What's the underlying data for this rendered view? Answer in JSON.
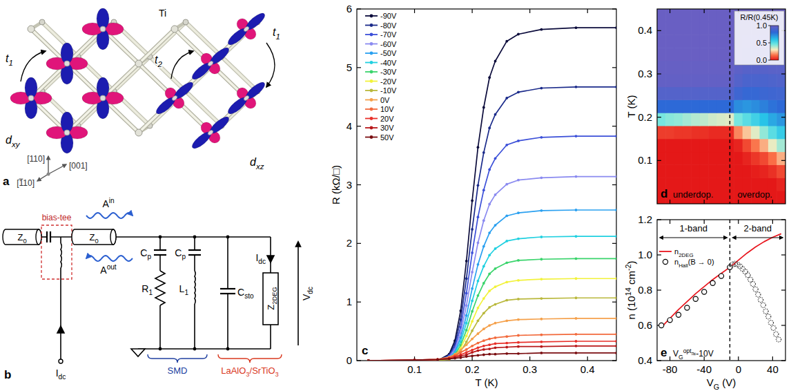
{
  "chart_data": [
    {
      "type": "line",
      "panel_label": "c",
      "x_label": "T (K)",
      "y_label": "R (kΩ/□)",
      "xlim": [
        0,
        0.45
      ],
      "ylim": [
        0,
        6
      ],
      "xticks": [
        0.1,
        0.2,
        0.3,
        0.4
      ],
      "yticks": [
        0,
        1,
        2,
        3,
        4,
        5,
        6
      ],
      "legend": "upper left",
      "marker": "circle",
      "x": [
        0.02,
        0.1,
        0.14,
        0.16,
        0.17,
        0.18,
        0.19,
        0.2,
        0.21,
        0.22,
        0.23,
        0.24,
        0.26,
        0.28,
        0.32,
        0.38,
        0.45
      ],
      "series": [
        {
          "name": "-90V",
          "color": "#0b0b3b",
          "values": [
            0,
            0,
            0,
            0.11,
            0.34,
            0.85,
            1.7,
            2.73,
            3.64,
            4.32,
            4.83,
            5.11,
            5.45,
            5.57,
            5.65,
            5.68,
            5.68
          ]
        },
        {
          "name": "-80V",
          "color": "#1a2a8a",
          "values": [
            0,
            0,
            0,
            0.09,
            0.28,
            0.7,
            1.4,
            2.24,
            2.99,
            3.55,
            3.97,
            4.2,
            4.48,
            4.58,
            4.65,
            4.67,
            4.67
          ]
        },
        {
          "name": "-70V",
          "color": "#3b4fd8",
          "values": [
            0,
            0,
            0,
            0.08,
            0.23,
            0.57,
            1.15,
            1.84,
            2.45,
            2.91,
            3.26,
            3.45,
            3.68,
            3.75,
            3.81,
            3.83,
            3.83
          ]
        },
        {
          "name": "-60V",
          "color": "#8a8af0",
          "values": [
            0,
            0,
            0,
            0.06,
            0.19,
            0.47,
            0.94,
            1.51,
            2.01,
            2.39,
            2.67,
            2.83,
            3.01,
            3.08,
            3.12,
            3.14,
            3.14
          ]
        },
        {
          "name": "-50V",
          "color": "#2aa0f0",
          "values": [
            0,
            0,
            0,
            0.05,
            0.15,
            0.39,
            0.77,
            1.23,
            1.64,
            1.95,
            2.18,
            2.31,
            2.47,
            2.52,
            2.56,
            2.57,
            2.57
          ]
        },
        {
          "name": "-40V",
          "color": "#20d0e0",
          "values": [
            0,
            0,
            0,
            0.04,
            0.13,
            0.32,
            0.64,
            1.02,
            1.36,
            1.61,
            1.8,
            1.91,
            2.04,
            2.08,
            2.11,
            2.12,
            2.12
          ]
        },
        {
          "name": "-30V",
          "color": "#3ad46c",
          "values": [
            0,
            0,
            0,
            0.03,
            0.1,
            0.26,
            0.52,
            0.84,
            1.11,
            1.32,
            1.48,
            1.57,
            1.67,
            1.71,
            1.73,
            1.74,
            1.74
          ]
        },
        {
          "name": "-20V",
          "color": "#f2f23a",
          "values": [
            0,
            0,
            0,
            0.03,
            0.08,
            0.21,
            0.42,
            0.67,
            0.9,
            1.06,
            1.19,
            1.26,
            1.34,
            1.37,
            1.39,
            1.4,
            1.4
          ]
        },
        {
          "name": "-10V",
          "color": "#b9b83c",
          "values": [
            0,
            0,
            0,
            0.02,
            0.06,
            0.16,
            0.32,
            0.51,
            0.68,
            0.81,
            0.91,
            0.96,
            1.03,
            1.05,
            1.06,
            1.07,
            1.07
          ]
        },
        {
          "name": "0V",
          "color": "#f5a04a",
          "values": [
            0,
            0,
            0.02,
            0.06,
            0.11,
            0.18,
            0.27,
            0.37,
            0.46,
            0.54,
            0.6,
            0.64,
            0.68,
            0.7,
            0.71,
            0.72,
            0.72
          ]
        },
        {
          "name": "10V",
          "color": "#f26a3c",
          "values": [
            0,
            0.01,
            0.02,
            0.05,
            0.09,
            0.14,
            0.19,
            0.25,
            0.3,
            0.34,
            0.37,
            0.39,
            0.41,
            0.43,
            0.44,
            0.45,
            0.45
          ]
        },
        {
          "name": "20V",
          "color": "#e8302a",
          "values": [
            0,
            0.01,
            0.02,
            0.04,
            0.07,
            0.1,
            0.14,
            0.18,
            0.22,
            0.25,
            0.27,
            0.29,
            0.3,
            0.31,
            0.32,
            0.33,
            0.33
          ]
        },
        {
          "name": "30V",
          "color": "#b8181a",
          "values": [
            0,
            0.01,
            0.02,
            0.03,
            0.05,
            0.08,
            0.1,
            0.14,
            0.17,
            0.19,
            0.2,
            0.22,
            0.23,
            0.24,
            0.24,
            0.25,
            0.25
          ]
        },
        {
          "name": "50V",
          "color": "#7a0d10",
          "values": [
            0,
            0.01,
            0.02,
            0.03,
            0.04,
            0.05,
            0.07,
            0.08,
            0.09,
            0.1,
            0.11,
            0.11,
            0.12,
            0.12,
            0.13,
            0.13,
            0.13
          ]
        }
      ]
    },
    {
      "type": "heatmap",
      "panel_label": "d",
      "y_label": "T (K)",
      "xlim": [
        -95,
        55
      ],
      "ylim": [
        0,
        0.45
      ],
      "xticks": [
        -80,
        -40,
        0,
        40
      ],
      "yticks": [
        0.1,
        0.2,
        0.3,
        0.4
      ],
      "tick_labels": "y",
      "x": [
        -90,
        -80,
        -70,
        -60,
        -50,
        -40,
        -30,
        -20,
        -10,
        0,
        10,
        20,
        30,
        40,
        50
      ],
      "y": [
        0.015,
        0.045,
        0.075,
        0.105,
        0.135,
        0.165,
        0.195,
        0.225,
        0.255,
        0.285,
        0.315,
        0.345,
        0.375,
        0.405,
        0.435
      ],
      "cells": [
        [
          0,
          0,
          0,
          0,
          0,
          0,
          0,
          0,
          0,
          0,
          0,
          0,
          0,
          0,
          0
        ],
        [
          0,
          0,
          0,
          0,
          0,
          0,
          0,
          0,
          0,
          0,
          0,
          0,
          0,
          0,
          0.02
        ],
        [
          0,
          0,
          0,
          0,
          0,
          0,
          0,
          0,
          0,
          0,
          0,
          0.01,
          0.02,
          0.04,
          0.08
        ],
        [
          0,
          0,
          0,
          0,
          0,
          0,
          0,
          0,
          0,
          0,
          0.02,
          0.05,
          0.08,
          0.14,
          0.22
        ],
        [
          0,
          0,
          0,
          0,
          0,
          0,
          0,
          0,
          0,
          0.02,
          0.08,
          0.15,
          0.22,
          0.32,
          0.4
        ],
        [
          0.06,
          0.06,
          0.05,
          0.05,
          0.04,
          0.04,
          0.03,
          0.03,
          0.03,
          0.17,
          0.25,
          0.33,
          0.42,
          0.5,
          0.57
        ],
        [
          0.45,
          0.43,
          0.42,
          0.4,
          0.38,
          0.37,
          0.35,
          0.34,
          0.33,
          0.45,
          0.5,
          0.55,
          0.6,
          0.66,
          0.7
        ],
        [
          0.8,
          0.8,
          0.8,
          0.8,
          0.8,
          0.8,
          0.8,
          0.8,
          0.8,
          0.72,
          0.7,
          0.72,
          0.75,
          0.78,
          0.8
        ],
        [
          0.93,
          0.93,
          0.93,
          0.93,
          0.93,
          0.93,
          0.93,
          0.93,
          0.93,
          0.86,
          0.83,
          0.83,
          0.85,
          0.86,
          0.87
        ],
        [
          0.98,
          0.98,
          0.98,
          0.98,
          0.98,
          0.98,
          0.98,
          0.98,
          0.98,
          0.93,
          0.9,
          0.9,
          0.9,
          0.91,
          0.92
        ],
        [
          0.99,
          0.99,
          0.99,
          0.99,
          0.99,
          0.99,
          0.99,
          0.99,
          0.99,
          0.96,
          0.94,
          0.94,
          0.94,
          0.95,
          0.95
        ],
        [
          1,
          1,
          1,
          1,
          1,
          1,
          1,
          1,
          1,
          0.98,
          0.97,
          0.96,
          0.96,
          0.97,
          0.97
        ],
        [
          1,
          1,
          1,
          1,
          1,
          1,
          1,
          1,
          1,
          0.99,
          0.98,
          0.98,
          0.98,
          0.98,
          0.98
        ],
        [
          1,
          1,
          1,
          1,
          1,
          1,
          1,
          1,
          1,
          1,
          0.99,
          0.99,
          0.99,
          0.99,
          0.99
        ],
        [
          1,
          1,
          1,
          1,
          1,
          1,
          1,
          1,
          1,
          1,
          1,
          1,
          1,
          1,
          1
        ]
      ],
      "colorbar": {
        "label": "R/R(0.45K)",
        "range": [
          0,
          1
        ],
        "ticks": [
          {
            "value": 0,
            "label": "0.0"
          },
          0.5,
          {
            "value": 1,
            "label": "1.0"
          }
        ]
      },
      "annotations": [
        "underdop.",
        "overdop."
      ],
      "vline": -10
    },
    {
      "type": "line",
      "panel_label": "e",
      "x_label": [
        "V",
        {
          "sub": "G"
        },
        " (V)"
      ],
      "y_label": [
        "n (10",
        {
          "sup": "14"
        },
        " cm",
        {
          "sup": "-2"
        },
        ")"
      ],
      "xlim": [
        -95,
        55
      ],
      "ylim": [
        0.4,
        1.2
      ],
      "xticks": [
        -80,
        -40,
        0,
        40
      ],
      "yticks": [
        0.4,
        0.6,
        0.8,
        {
          "value": 1,
          "label": "1.0"
        },
        1.2
      ],
      "legend": "upper left",
      "series": [
        {
          "name": [
            "n",
            {
              "sub": "2DEG"
            }
          ],
          "type": "line",
          "line_style": "solid",
          "color": "#e8141c",
          "x": [
            -90,
            -80,
            -70,
            -60,
            -50,
            -40,
            -30,
            -20,
            -10,
            0,
            10,
            20,
            30,
            40,
            50
          ],
          "values": [
            0.59,
            0.64,
            0.69,
            0.735,
            0.78,
            0.82,
            0.86,
            0.895,
            0.93,
            0.97,
            1.01,
            1.045,
            1.075,
            1.1,
            1.12
          ]
        },
        {
          "name": [
            "n",
            {
              "sub": "Hall"
            },
            "(B → 0)"
          ],
          "type": "scatter",
          "marker": "circle",
          "line_style": "solid",
          "color": "#000000",
          "x": [
            -90,
            -80,
            -70,
            -60,
            -50,
            -40,
            -30,
            -20,
            -10
          ],
          "values": [
            0.6,
            0.63,
            0.66,
            0.7,
            0.75,
            0.79,
            0.84,
            0.88,
            0.93
          ]
        },
        {
          "type": "scatter",
          "marker": "circle",
          "line_style": "dotted",
          "color": "#333333",
          "x": [
            -7,
            -4,
            -1,
            2,
            5,
            8,
            11,
            14,
            17,
            20,
            23,
            26,
            29,
            32,
            35,
            38,
            41,
            44,
            47
          ],
          "values": [
            0.945,
            0.95,
            0.945,
            0.935,
            0.92,
            0.905,
            0.885,
            0.86,
            0.835,
            0.805,
            0.775,
            0.745,
            0.715,
            0.68,
            0.65,
            0.615,
            0.585,
            0.55,
            0.52
          ]
        }
      ],
      "annotations": [
        "1-band",
        "2-band"
      ],
      "vline": -10,
      "opt_label": [
        "V",
        {
          "sub": "G"
        },
        {
          "sup": "opt"
        },
        "≈-10V"
      ]
    }
  ],
  "panel_a": {
    "label": "a",
    "atom": "Ti",
    "hoppings": [
      [
        "t",
        {
          "sub": "1"
        }
      ],
      [
        "t",
        {
          "sub": "2"
        }
      ],
      [
        "t",
        {
          "sub": "1"
        }
      ]
    ],
    "orbitals": [
      [
        "d",
        {
          "sub": "xy"
        }
      ],
      [
        "d",
        {
          "sub": "xz"
        }
      ]
    ],
    "directions": [
      "[110]",
      "[001]",
      [
        "[",
        {
          "bar": "1"
        },
        "10]"
      ]
    ]
  },
  "panel_b": {
    "label": "b",
    "cables": [
      [
        "Z",
        {
          "sub": "0"
        }
      ],
      [
        "Z",
        {
          "sub": "0"
        }
      ]
    ],
    "bias_tee": "bias-tee",
    "waves": [
      [
        "A",
        {
          "sup": "in"
        }
      ],
      [
        "A",
        {
          "sup": "out"
        }
      ]
    ],
    "components": {
      "cp1": [
        "C",
        {
          "sub": "p"
        }
      ],
      "cp2": [
        "C",
        {
          "sub": "p"
        }
      ],
      "r1": [
        "R",
        {
          "sub": "1"
        }
      ],
      "l1": [
        "L",
        {
          "sub": "1"
        }
      ],
      "csto": [
        "C",
        {
          "sub": "sto"
        }
      ],
      "z2deg": [
        "Z",
        {
          "sub": "2DEG"
        }
      ]
    },
    "currents": [
      [
        "I",
        {
          "sub": "dc"
        }
      ],
      [
        "I",
        {
          "sub": "dc"
        }
      ]
    ],
    "voltage": [
      "V",
      {
        "sub": "dc"
      }
    ],
    "groups": [
      "SMD",
      [
        "LaAlO",
        {
          "sub": "3"
        },
        "/SrTiO",
        {
          "sub": "3"
        }
      ]
    ]
  }
}
